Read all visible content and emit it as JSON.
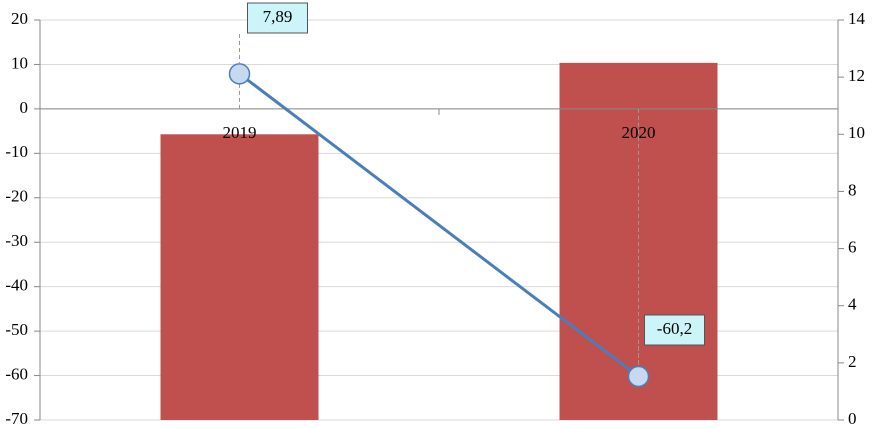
{
  "chart_data": {
    "type": "bar-line",
    "categories": [
      "2019",
      "2020"
    ],
    "series": [
      {
        "type": "bar",
        "color": "#c0504d",
        "axis": "y2",
        "values": [
          10,
          12.5
        ]
      },
      {
        "type": "line",
        "color": "#4a7ebb",
        "values": [
          7.89,
          -60.2
        ],
        "value_labels": [
          "7,89",
          "-60,2"
        ]
      }
    ],
    "ylim": [
      -70,
      20
    ],
    "yticks": [
      -70,
      -60,
      -50,
      -40,
      -30,
      -20,
      -10,
      0,
      10,
      20
    ],
    "y2lim": [
      0,
      14
    ],
    "y2ticks": [
      0,
      2,
      4,
      6,
      8,
      10,
      12,
      14
    ],
    "grid": true
  }
}
